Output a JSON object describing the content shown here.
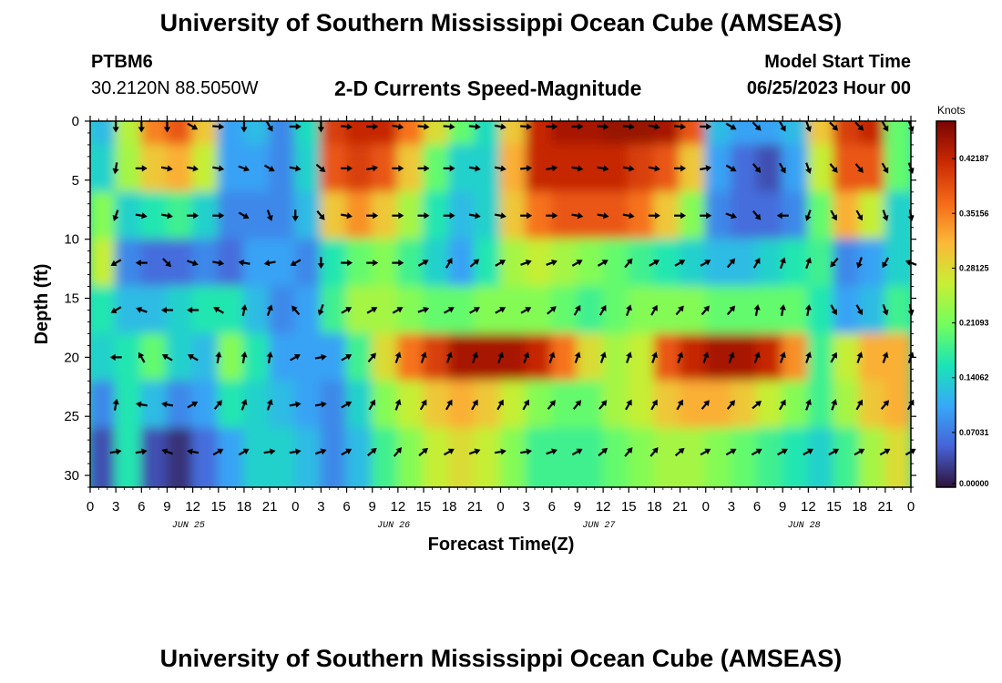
{
  "header": {
    "title": "University of Southern Mississippi Ocean Cube (AMSEAS)",
    "station_id": "PTBM6",
    "coordinates": "30.2120N  88.5050W",
    "subtitle": "2-D Currents Speed-Magnitude",
    "start_label": "Model Start Time",
    "start_value": "06/25/2023 Hour 00"
  },
  "footer": {
    "title": "University of Southern Mississippi Ocean Cube (AMSEAS)"
  },
  "chart_data": {
    "type": "heatmap",
    "title": "2-D Currents Speed-Magnitude",
    "xlabel": "Forecast Time(Z)",
    "ylabel": "Depth (ft)",
    "x_tick_labels": [
      "0",
      "3",
      "6",
      "9",
      "12",
      "15",
      "18",
      "21",
      "0",
      "3",
      "6",
      "9",
      "12",
      "15",
      "18",
      "21",
      "0",
      "3",
      "6",
      "9",
      "12",
      "15",
      "18",
      "21",
      "0",
      "3",
      "6",
      "9",
      "12",
      "15",
      "18",
      "21",
      "0"
    ],
    "day_labels": [
      "JUN 25",
      "JUN 26",
      "JUN 27",
      "JUN 28"
    ],
    "xlim_hours": [
      0,
      96
    ],
    "ylim_ft": [
      31,
      0
    ],
    "y_ticks": [
      0,
      5,
      10,
      15,
      20,
      25,
      30
    ],
    "colorbar": {
      "unit": "Knots",
      "tick_labels": [
        "0.00000",
        "0.07031",
        "0.14062",
        "0.21093",
        "0.28125",
        "0.35156",
        "0.42187"
      ],
      "tick_values": [
        0.0,
        0.07031,
        0.14062,
        0.21093,
        0.28125,
        0.35156,
        0.42187
      ],
      "range": [
        0,
        0.47
      ],
      "colors": [
        "#30123b",
        "#4662d7",
        "#36a9f8",
        "#1ae4b6",
        "#72fe5e",
        "#c7ef34",
        "#fbb938",
        "#f56918",
        "#c92903",
        "#7a0403"
      ]
    },
    "depths_ft": [
      0,
      4,
      8,
      12,
      16,
      20,
      24,
      28
    ],
    "hours": [
      3,
      6,
      9,
      12,
      15,
      18,
      21,
      24,
      27,
      30,
      33,
      36,
      39,
      42,
      45,
      48,
      51,
      54,
      57,
      60,
      63,
      66,
      69,
      72,
      75,
      78,
      81,
      84,
      87,
      90,
      93,
      96
    ],
    "speed_knots": [
      [
        0.12,
        0.25,
        0.35,
        0.38,
        0.3,
        0.1,
        0.12,
        0.08,
        0.15,
        0.4,
        0.42,
        0.42,
        0.36,
        0.28,
        0.2,
        0.15,
        0.3,
        0.42,
        0.44,
        0.44,
        0.45,
        0.45,
        0.44,
        0.38,
        0.12,
        0.1,
        0.1,
        0.12,
        0.3,
        0.4,
        0.42,
        0.2
      ],
      [
        0.14,
        0.24,
        0.3,
        0.32,
        0.26,
        0.1,
        0.1,
        0.08,
        0.14,
        0.38,
        0.4,
        0.38,
        0.3,
        0.2,
        0.14,
        0.14,
        0.32,
        0.42,
        0.42,
        0.42,
        0.42,
        0.4,
        0.38,
        0.3,
        0.1,
        0.06,
        0.04,
        0.1,
        0.26,
        0.38,
        0.38,
        0.2
      ],
      [
        0.22,
        0.14,
        0.16,
        0.18,
        0.14,
        0.08,
        0.08,
        0.08,
        0.12,
        0.3,
        0.34,
        0.3,
        0.24,
        0.16,
        0.12,
        0.14,
        0.3,
        0.36,
        0.38,
        0.38,
        0.38,
        0.36,
        0.3,
        0.22,
        0.08,
        0.06,
        0.06,
        0.08,
        0.2,
        0.32,
        0.26,
        0.14
      ],
      [
        0.26,
        0.08,
        0.06,
        0.06,
        0.08,
        0.06,
        0.1,
        0.1,
        0.08,
        0.16,
        0.2,
        0.22,
        0.18,
        0.14,
        0.1,
        0.16,
        0.24,
        0.26,
        0.24,
        0.22,
        0.2,
        0.18,
        0.16,
        0.14,
        0.12,
        0.12,
        0.14,
        0.16,
        0.18,
        0.08,
        0.1,
        0.14
      ],
      [
        0.16,
        0.12,
        0.12,
        0.14,
        0.16,
        0.16,
        0.12,
        0.08,
        0.1,
        0.18,
        0.24,
        0.24,
        0.22,
        0.2,
        0.2,
        0.22,
        0.22,
        0.22,
        0.2,
        0.18,
        0.2,
        0.22,
        0.22,
        0.22,
        0.2,
        0.2,
        0.2,
        0.2,
        0.16,
        0.1,
        0.12,
        0.18
      ],
      [
        0.14,
        0.16,
        0.2,
        0.14,
        0.12,
        0.22,
        0.16,
        0.1,
        0.1,
        0.1,
        0.18,
        0.28,
        0.36,
        0.4,
        0.44,
        0.44,
        0.44,
        0.42,
        0.36,
        0.28,
        0.24,
        0.26,
        0.38,
        0.42,
        0.44,
        0.44,
        0.42,
        0.34,
        0.18,
        0.26,
        0.32,
        0.32
      ],
      [
        0.08,
        0.16,
        0.12,
        0.08,
        0.1,
        0.16,
        0.14,
        0.12,
        0.1,
        0.08,
        0.14,
        0.22,
        0.26,
        0.3,
        0.32,
        0.3,
        0.26,
        0.22,
        0.2,
        0.2,
        0.24,
        0.26,
        0.3,
        0.32,
        0.32,
        0.3,
        0.26,
        0.22,
        0.18,
        0.24,
        0.3,
        0.32
      ],
      [
        0.04,
        0.16,
        0.04,
        0.02,
        0.06,
        0.1,
        0.14,
        0.14,
        0.12,
        0.08,
        0.12,
        0.18,
        0.22,
        0.26,
        0.28,
        0.26,
        0.22,
        0.18,
        0.18,
        0.18,
        0.2,
        0.22,
        0.24,
        0.24,
        0.22,
        0.2,
        0.18,
        0.16,
        0.14,
        0.18,
        0.24,
        0.28
      ]
    ],
    "vector_direction_deg": [
      [
        180,
        180,
        180,
        120,
        95,
        180,
        150,
        90,
        180,
        95,
        90,
        100,
        95,
        95,
        95,
        100,
        95,
        90,
        90,
        95,
        95,
        100,
        95,
        90,
        120,
        135,
        150,
        160,
        135,
        135,
        150,
        160
      ],
      [
        190,
        90,
        100,
        100,
        100,
        110,
        120,
        100,
        130,
        90,
        80,
        90,
        90,
        90,
        100,
        100,
        85,
        80,
        100,
        100,
        100,
        100,
        90,
        80,
        120,
        140,
        150,
        160,
        140,
        140,
        150,
        160
      ],
      [
        200,
        100,
        100,
        90,
        90,
        120,
        160,
        180,
        140,
        100,
        90,
        90,
        90,
        90,
        100,
        100,
        90,
        90,
        100,
        100,
        100,
        90,
        90,
        90,
        110,
        140,
        270,
        200,
        150,
        150,
        160,
        170
      ],
      [
        240,
        270,
        135,
        110,
        100,
        280,
        260,
        240,
        180,
        90,
        90,
        90,
        60,
        30,
        50,
        60,
        70,
        70,
        60,
        60,
        40,
        60,
        60,
        60,
        40,
        30,
        20,
        20,
        220,
        200,
        210,
        290
      ],
      [
        240,
        290,
        270,
        270,
        300,
        10,
        20,
        320,
        200,
        60,
        60,
        60,
        70,
        60,
        60,
        60,
        60,
        50,
        30,
        30,
        20,
        30,
        40,
        40,
        40,
        10,
        10,
        10,
        150,
        150,
        160,
        170
      ],
      [
        270,
        330,
        300,
        300,
        10,
        10,
        10,
        60,
        80,
        60,
        40,
        20,
        20,
        20,
        20,
        20,
        20,
        20,
        20,
        20,
        20,
        20,
        20,
        20,
        20,
        20,
        20,
        20,
        30,
        20,
        20,
        20
      ],
      [
        10,
        280,
        280,
        60,
        40,
        20,
        20,
        80,
        80,
        60,
        30,
        20,
        30,
        30,
        30,
        30,
        30,
        40,
        40,
        40,
        30,
        30,
        30,
        40,
        40,
        50,
        30,
        20,
        20,
        30,
        40,
        30
      ],
      [
        80,
        80,
        290,
        280,
        60,
        60,
        80,
        80,
        70,
        60,
        50,
        40,
        50,
        60,
        70,
        80,
        80,
        70,
        60,
        50,
        40,
        40,
        50,
        60,
        60,
        60,
        60,
        60,
        60,
        60,
        60,
        60
      ]
    ]
  }
}
